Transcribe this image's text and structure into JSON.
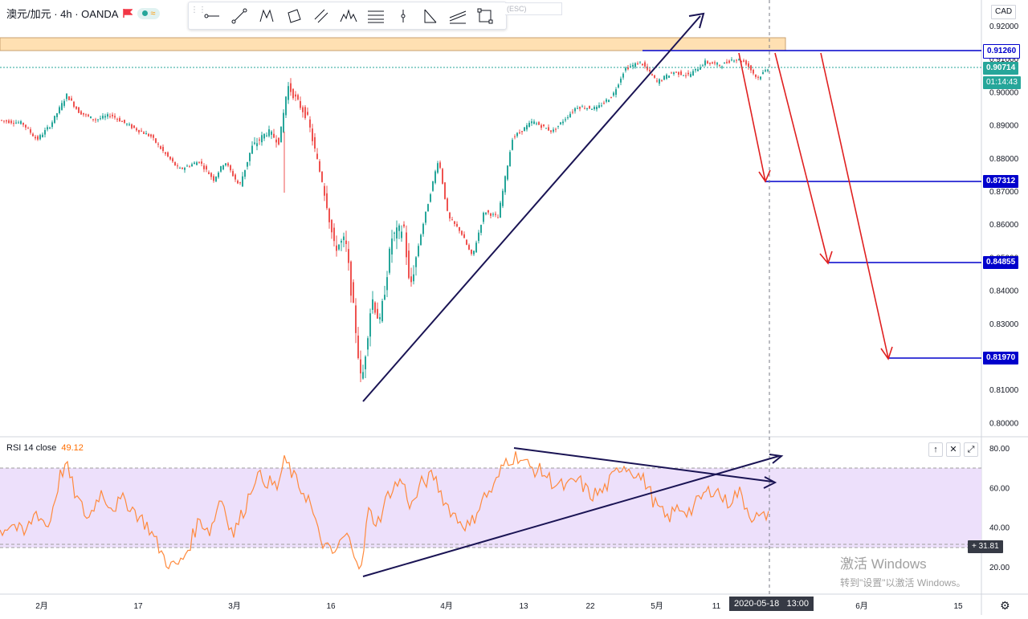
{
  "header": {
    "symbol": "澳元/加元 · 4h · OANDA",
    "pill_text": "≈"
  },
  "toolbar": {
    "tools": [
      "horizontal-ray-icon",
      "trend-line-icon",
      "xabcd-pattern-icon",
      "rectangle-icon",
      "parallel-channel-icon",
      "head-shoulders-icon",
      "fib-retracement-icon",
      "vertical-line-icon",
      "abcd-pattern-icon",
      "fib-channel-icon",
      "select-frame-icon"
    ],
    "esc_hint": "ESC"
  },
  "price_axis": {
    "currency": "CAD",
    "ticks": [
      "0.92000",
      "0.91000",
      "0.90000",
      "0.89000",
      "0.88000",
      "0.87000",
      "0.86000",
      "0.85000",
      "0.84000",
      "0.83000",
      "0.82000",
      "0.81000",
      "0.80000"
    ]
  },
  "price_labels": {
    "resistance": "0.91260",
    "current": "0.90714",
    "countdown": "01:14:43",
    "target1": "0.87312",
    "target2": "0.84855",
    "target3": "0.81970"
  },
  "time_axis": {
    "labels": [
      "2月",
      "17",
      "3月",
      "16",
      "4月",
      "13",
      "22",
      "5月",
      "11",
      "6月",
      "15"
    ],
    "cursor_date": "2020-05-18",
    "cursor_time": "13:00"
  },
  "rsi": {
    "title": "RSI 14 close",
    "value": "49.12",
    "ticks": [
      "80.00",
      "60.00",
      "40.00",
      "20.00"
    ],
    "cursor_value": "31.81"
  },
  "watermark": {
    "line1": "激活 Windows",
    "line2": "转到\"设置\"以激活 Windows。"
  },
  "colors": {
    "up": "#26a69a",
    "down": "#ef5350",
    "level": "#0000cc",
    "trend": "#1a1454",
    "arrow": "#e02020",
    "zone": "#ffe0b2",
    "rsi_line": "#ff8a3d",
    "rsi_band": "#ede0fb"
  },
  "chart_data": [
    {
      "type": "candlestick",
      "title": "",
      "xlabel": "",
      "ylabel": "",
      "ylim": [
        0.799,
        0.925
      ],
      "x": [
        "2020-01-27",
        "2020-02-03",
        "2020-02-10",
        "2020-02-17",
        "2020-02-24",
        "2020-03-02",
        "2020-03-09",
        "2020-03-16",
        "2020-03-19",
        "2020-03-23",
        "2020-03-30",
        "2020-04-06",
        "2020-04-13",
        "2020-04-20",
        "2020-04-27",
        "2020-05-04",
        "2020-05-11",
        "2020-05-18"
      ],
      "y": [
        0.892,
        0.896,
        0.89,
        0.885,
        0.876,
        0.882,
        0.903,
        0.86,
        0.81,
        0.85,
        0.875,
        0.855,
        0.89,
        0.897,
        0.908,
        0.905,
        0.909,
        0.9071
      ],
      "levels": [
        0.9126,
        0.87312,
        0.84855,
        0.8197
      ],
      "resistance_zone": [
        0.9126,
        0.916
      ],
      "current_price": 0.90714,
      "grid": false,
      "legend": "none"
    },
    {
      "type": "line",
      "title": "RSI 14 close",
      "ylim": [
        10,
        85
      ],
      "bands": [
        30,
        70
      ],
      "x": [
        "2020-01-27",
        "2020-02-03",
        "2020-02-10",
        "2020-02-17",
        "2020-02-24",
        "2020-03-02",
        "2020-03-09",
        "2020-03-16",
        "2020-03-19",
        "2020-03-23",
        "2020-03-30",
        "2020-04-06",
        "2020-04-13",
        "2020-04-20",
        "2020-04-27",
        "2020-05-04",
        "2020-05-11",
        "2020-05-18"
      ],
      "y": [
        45,
        68,
        52,
        40,
        22,
        40,
        75,
        30,
        18,
        55,
        65,
        42,
        70,
        63,
        70,
        52,
        55,
        49.12
      ]
    }
  ]
}
